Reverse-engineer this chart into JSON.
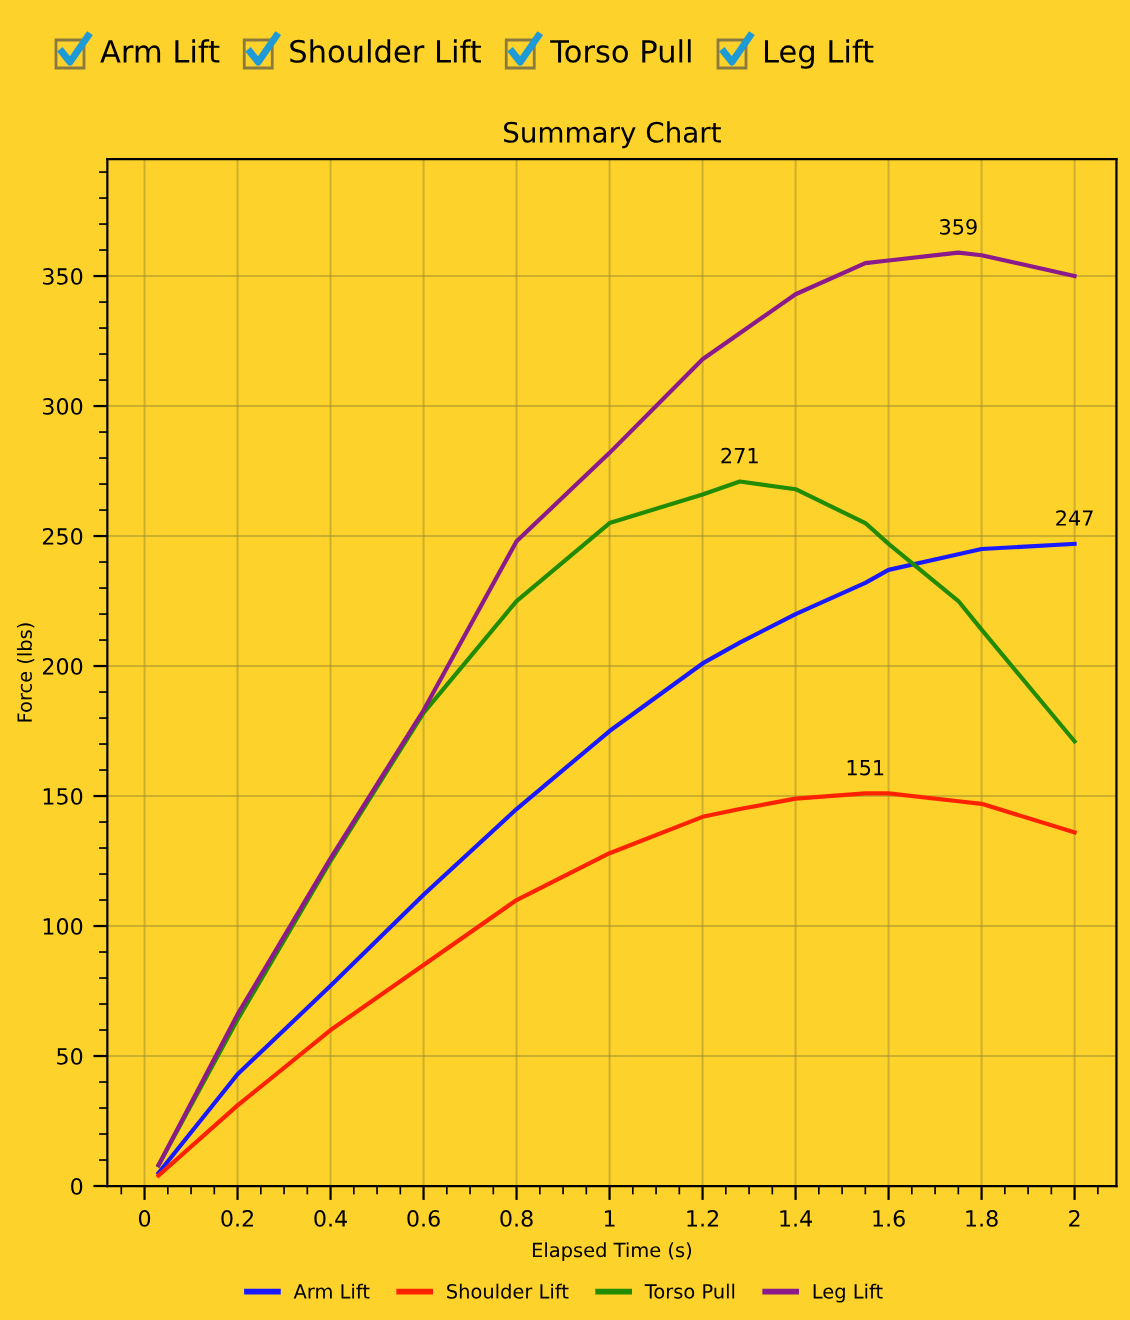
{
  "chart_data": {
    "type": "line",
    "title": "Summary Chart",
    "xlabel": "Elapsed Time (s)",
    "ylabel": "Force (lbs)",
    "x": [
      0.03,
      0.2,
      0.4,
      0.6,
      0.8,
      1.0,
      1.2,
      1.28,
      1.4,
      1.55,
      1.6,
      1.75,
      1.8,
      2.0
    ],
    "series": [
      {
        "name": "Arm Lift",
        "color": "#1a1aff",
        "values": [
          5,
          43,
          77,
          112,
          145,
          175,
          201,
          209,
          220,
          232,
          237,
          243,
          245,
          247
        ]
      },
      {
        "name": "Shoulder Lift",
        "color": "#ff2200",
        "values": [
          4,
          31,
          60,
          85,
          110,
          128,
          142,
          145,
          149,
          151,
          151,
          148,
          147,
          136
        ]
      },
      {
        "name": "Torso Pull",
        "color": "#228b00",
        "values": [
          8,
          64,
          125,
          182,
          225,
          255,
          266,
          271,
          268,
          255,
          247,
          225,
          214,
          171
        ]
      },
      {
        "name": "Leg Lift",
        "color": "#8b1a8b",
        "values": [
          8,
          66,
          126,
          183,
          248,
          282,
          318,
          328,
          343,
          355,
          356,
          359,
          358,
          350
        ]
      }
    ],
    "annotations": [
      "Arm Lift",
      "Shoulder Lift",
      "Torso Pull",
      "Leg Lift",
      {
        "text": "359",
        "x": 1.75,
        "y": 359
      },
      {
        "text": "271",
        "x": 1.28,
        "y": 271
      },
      {
        "text": "247",
        "x": 2.0,
        "y": 247
      },
      {
        "text": "151",
        "x": 1.55,
        "y": 151
      }
    ],
    "xlim": [
      -0.08,
      2.09
    ],
    "xticks": [
      0,
      0.2,
      0.4,
      0.6,
      0.8,
      1,
      1.2,
      1.4,
      1.6,
      1.8,
      2
    ],
    "ylim": [
      0,
      395
    ],
    "yticks": [
      0,
      50,
      100,
      150,
      200,
      250,
      300,
      350
    ],
    "grid": true,
    "legend": "bottom",
    "marker": "none",
    "line_style": "solid"
  }
}
